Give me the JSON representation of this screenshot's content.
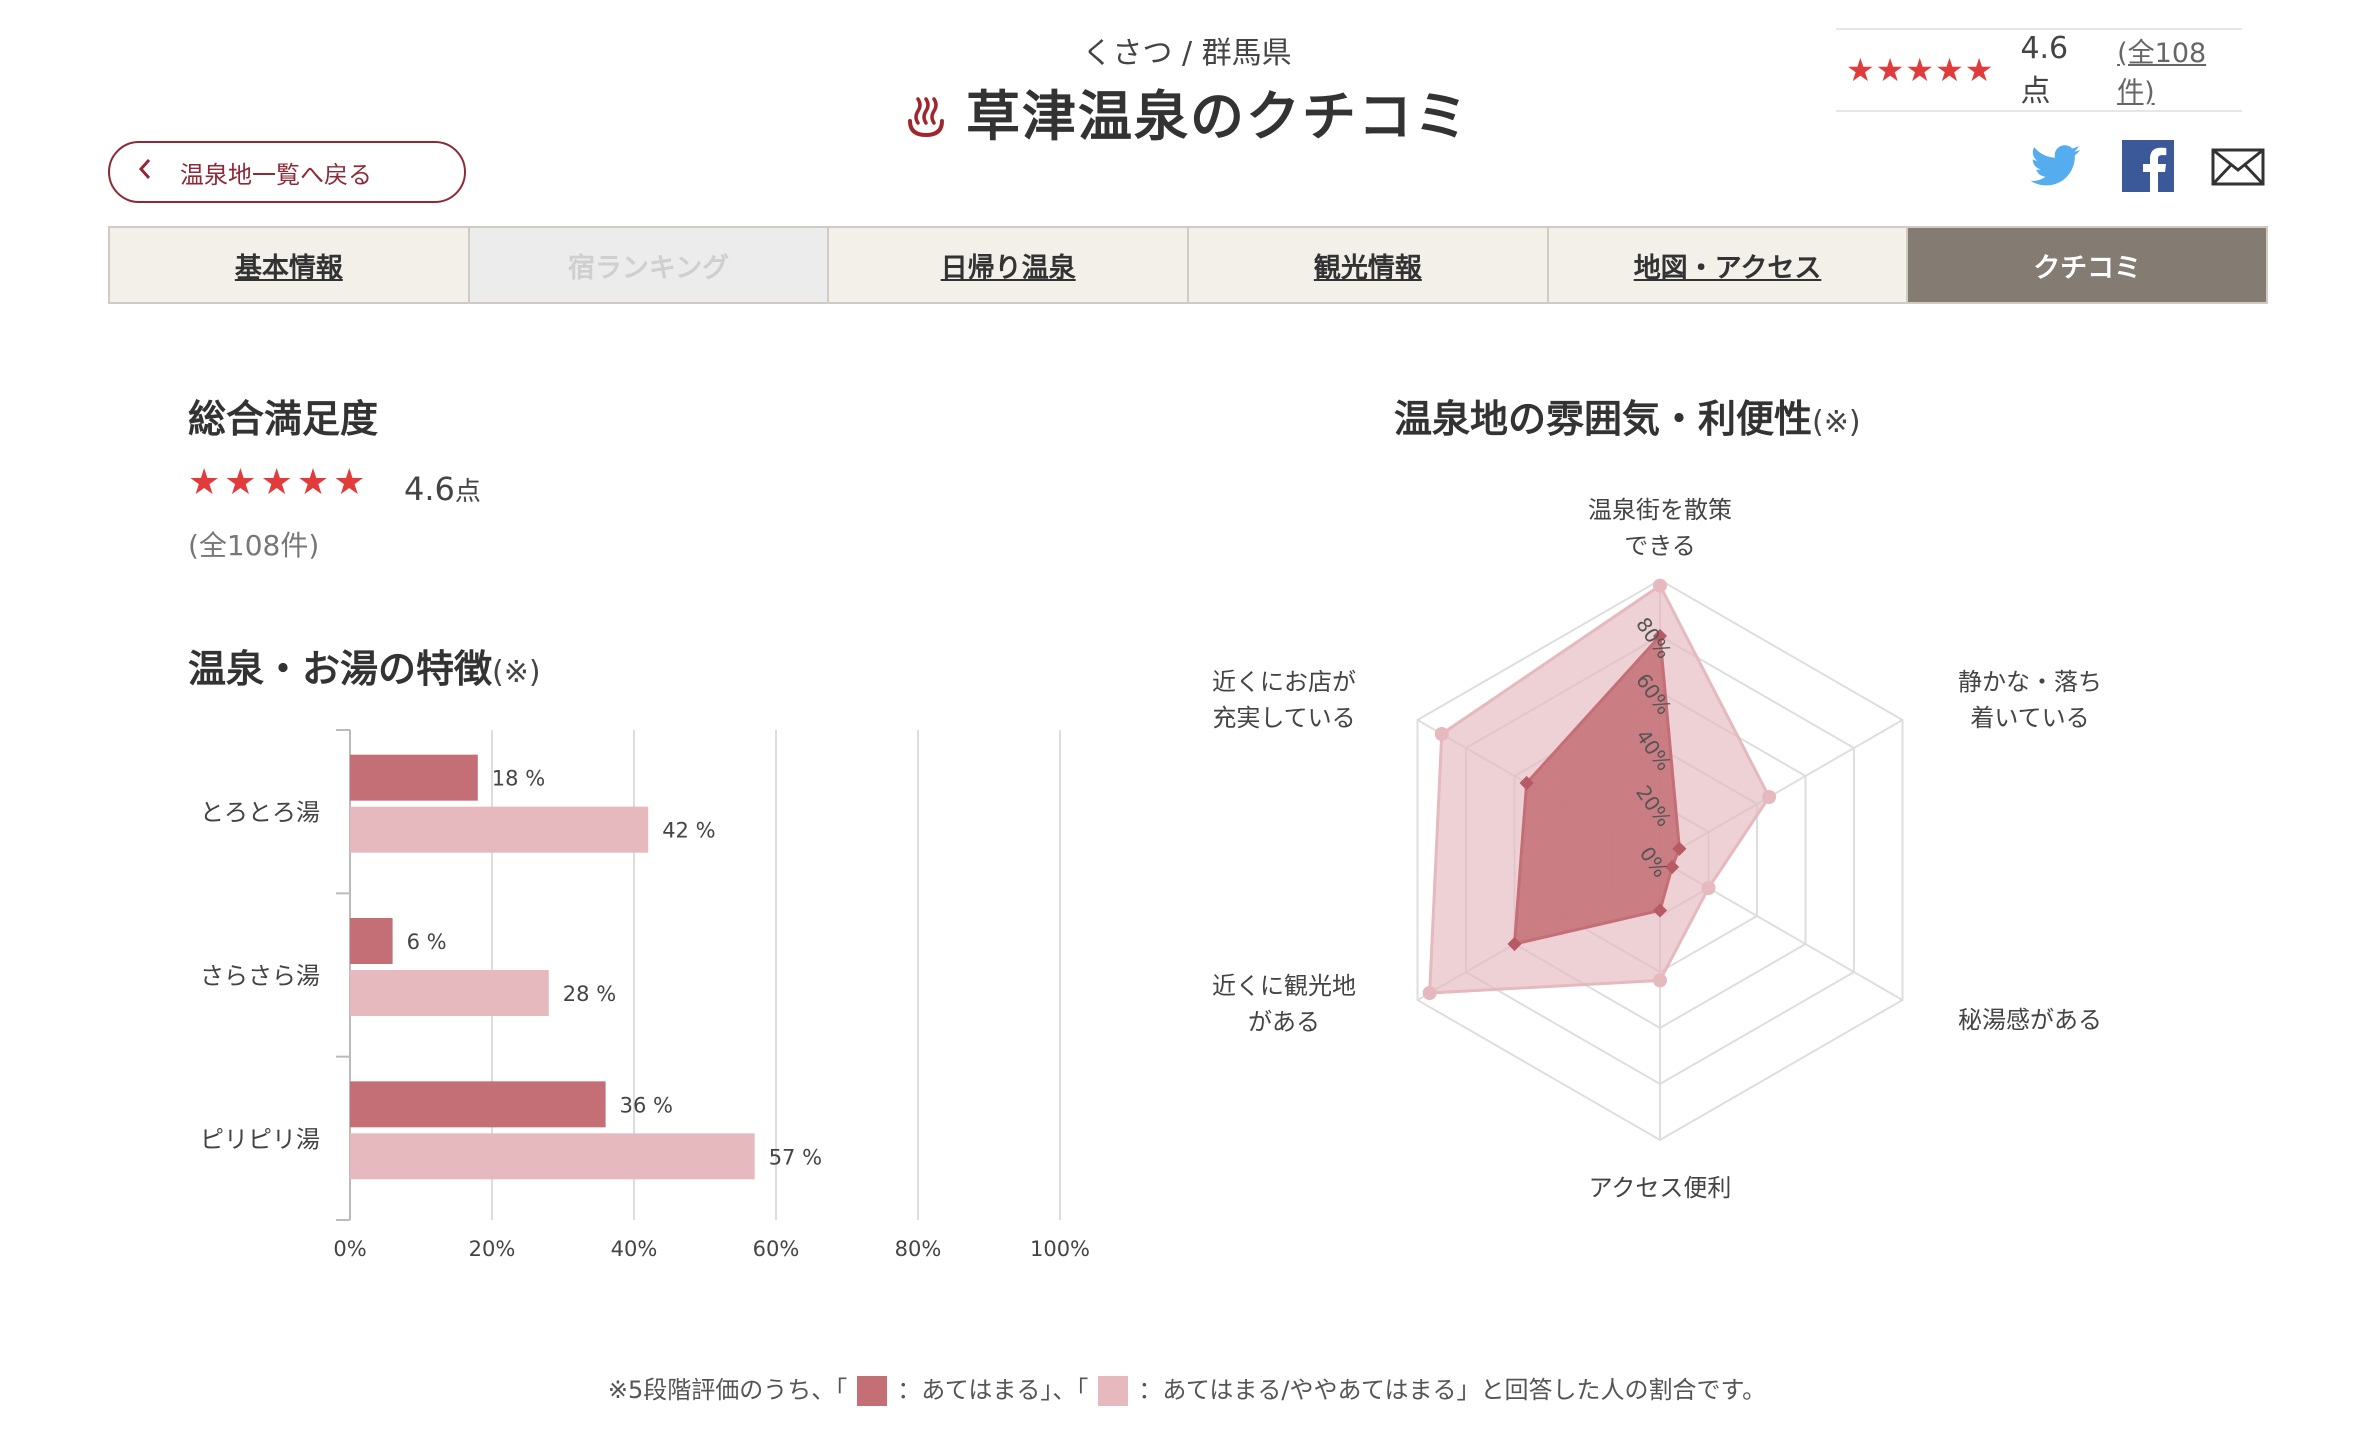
{
  "header": {
    "subtitle": "くさつ / 群馬県",
    "title": "草津温泉のクチコミ",
    "rating_stars": "★★★★★",
    "rating_score": "4.6点",
    "rating_count": "(全108件)"
  },
  "back_button": {
    "label": "温泉地一覧へ戻る"
  },
  "social": {
    "twitter": "twitter-icon",
    "facebook": "facebook-icon",
    "mail": "mail-icon"
  },
  "tabs": [
    {
      "label": "基本情報"
    },
    {
      "label": "宿ランキング"
    },
    {
      "label": "日帰り温泉"
    },
    {
      "label": "観光情報"
    },
    {
      "label": "地図・アクセス"
    },
    {
      "label": "クチコミ"
    }
  ],
  "satisfaction": {
    "title": "総合満足度",
    "stars": "★★★★★",
    "score": "4.6",
    "unit": "点",
    "count": "(全108件)"
  },
  "features": {
    "title": "温泉・お湯の特徴",
    "note": "(※)"
  },
  "atmosphere": {
    "title": "温泉地の雰囲気・利便性",
    "note": "(※)"
  },
  "footnote": {
    "part1": "※5段階評価のうち、「",
    "part2": "：あてはまる」、「",
    "part3": "：あてはまる/ややあてはまる」と回答した人の割合です。"
  },
  "colors": {
    "dark": "#c46e76",
    "light": "#e5b9be",
    "accent": "#8e2a38",
    "star": "#e23b3b"
  },
  "chart_data": [
    {
      "type": "bar",
      "orientation": "horizontal",
      "categories": [
        "とろとろ湯",
        "さらさら湯",
        "ピリピリ湯"
      ],
      "series": [
        {
          "values": [
            18,
            6,
            36
          ],
          "color": "#c46e76"
        },
        {
          "values": [
            42,
            28,
            57
          ],
          "color": "#e5b9be"
        }
      ],
      "value_labels": [
        [
          "18 %",
          "6 %",
          "36 %"
        ],
        [
          "42 %",
          "28 %",
          "57 %"
        ]
      ],
      "xlim": [
        0,
        100
      ],
      "xticks": [
        "0%",
        "20%",
        "40%",
        "60%",
        "80%",
        "100%"
      ],
      "grid": true
    },
    {
      "type": "radar",
      "axes": [
        "温泉街を散策\nできる",
        "静かな・落ち\n着いている",
        "秘湯感がある",
        "アクセス便利",
        "近くに観光地\nがある",
        "近くにお店が\n充実している"
      ],
      "series": [
        {
          "values": [
            80,
            8,
            5,
            18,
            60,
            55
          ],
          "color": "#c46e76"
        },
        {
          "values": [
            98,
            45,
            20,
            43,
            95,
            90
          ],
          "color": "#e5b9be"
        }
      ],
      "rlim": [
        0,
        100
      ],
      "rticks": [
        "0%",
        "20%",
        "40%",
        "60%",
        "80%"
      ]
    }
  ]
}
